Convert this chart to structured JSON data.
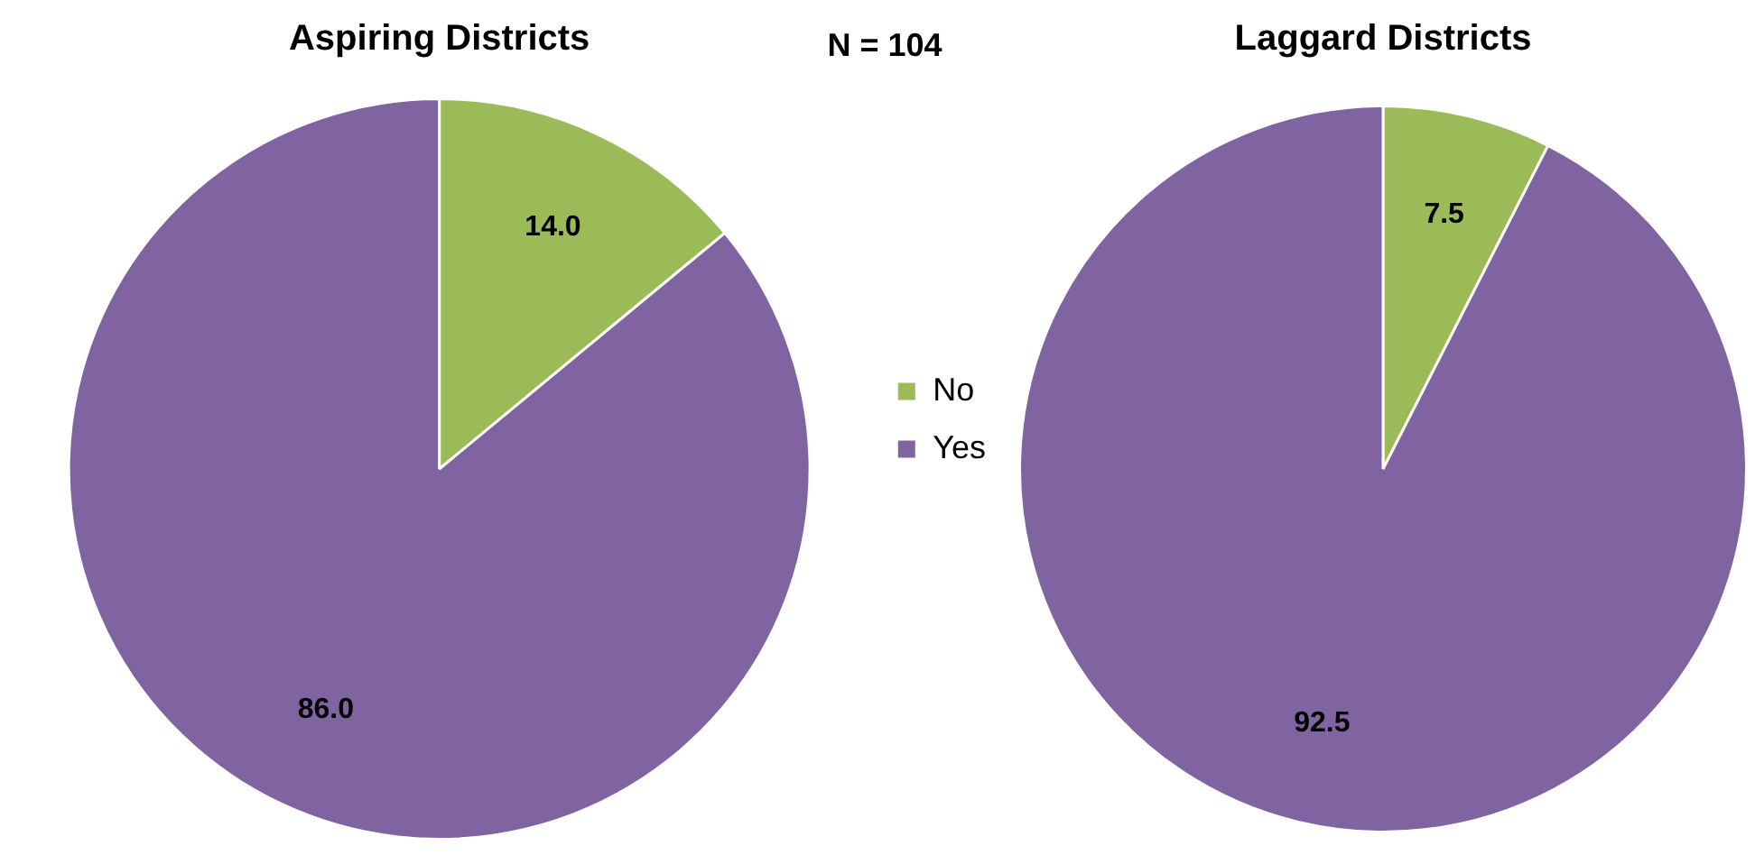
{
  "chart_data": [
    {
      "type": "pie",
      "title": "Aspiring Districts",
      "annotations": [
        "N = 104"
      ],
      "categories": [
        "No",
        "Yes"
      ],
      "values": [
        14,
        86
      ],
      "colors": [
        "#9bbb59",
        "#8064a2"
      ],
      "value_labels": [
        "14.0",
        "86.0"
      ],
      "legend": "right"
    },
    {
      "type": "pie",
      "title": "Laggard Districts",
      "categories": [
        null,
        null
      ],
      "values": [
        7.5,
        92.5
      ],
      "colors": [
        "#9bbb59",
        "#8064a2"
      ],
      "value_labels": [
        "7.5",
        "92.5"
      ],
      "legend": false
    }
  ]
}
